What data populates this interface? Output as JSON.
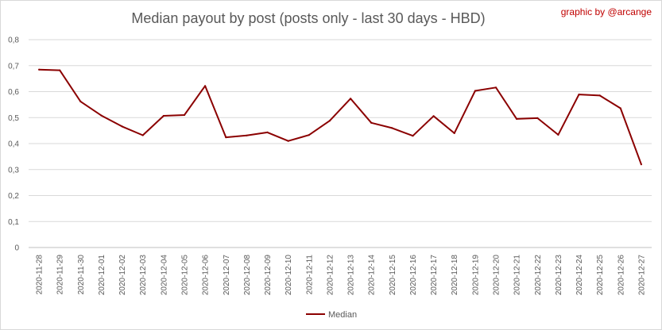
{
  "chart_data": {
    "type": "line",
    "title": "Median payout by post (posts only - last 30 days - HBD)",
    "credit": "graphic by @arcange",
    "xlabel": "",
    "ylabel": "",
    "ylim": [
      0,
      0.8
    ],
    "yticks": [
      "0",
      "0,1",
      "0,2",
      "0,3",
      "0,4",
      "0,5",
      "0,6",
      "0,7",
      "0,8"
    ],
    "ytick_values": [
      0,
      0.1,
      0.2,
      0.3,
      0.4,
      0.5,
      0.6,
      0.7,
      0.8
    ],
    "grid": true,
    "legend_position": "bottom",
    "colors": {
      "line": "#8b0000",
      "grid": "#d9d9d9",
      "axis": "#bfbfbf"
    },
    "categories": [
      "2020-11-28",
      "2020-11-29",
      "2020-11-30",
      "2020-12-01",
      "2020-12-02",
      "2020-12-03",
      "2020-12-04",
      "2020-12-05",
      "2020-12-06",
      "2020-12-07",
      "2020-12-08",
      "2020-12-09",
      "2020-12-10",
      "2020-12-11",
      "2020-12-12",
      "2020-12-13",
      "2020-12-14",
      "2020-12-15",
      "2020-12-16",
      "2020-12-17",
      "2020-12-18",
      "2020-12-19",
      "2020-12-20",
      "2020-12-21",
      "2020-12-22",
      "2020-12-23",
      "2020-12-24",
      "2020-12-25",
      "2020-12-26",
      "2020-12-27"
    ],
    "series": [
      {
        "name": "Median",
        "values": [
          0.685,
          0.682,
          0.562,
          0.508,
          0.466,
          0.432,
          0.507,
          0.51,
          0.622,
          0.424,
          0.431,
          0.443,
          0.41,
          0.433,
          0.488,
          0.573,
          0.48,
          0.46,
          0.43,
          0.506,
          0.44,
          0.603,
          0.616,
          0.495,
          0.498,
          0.434,
          0.589,
          0.585,
          0.536,
          0.32
        ]
      }
    ]
  }
}
